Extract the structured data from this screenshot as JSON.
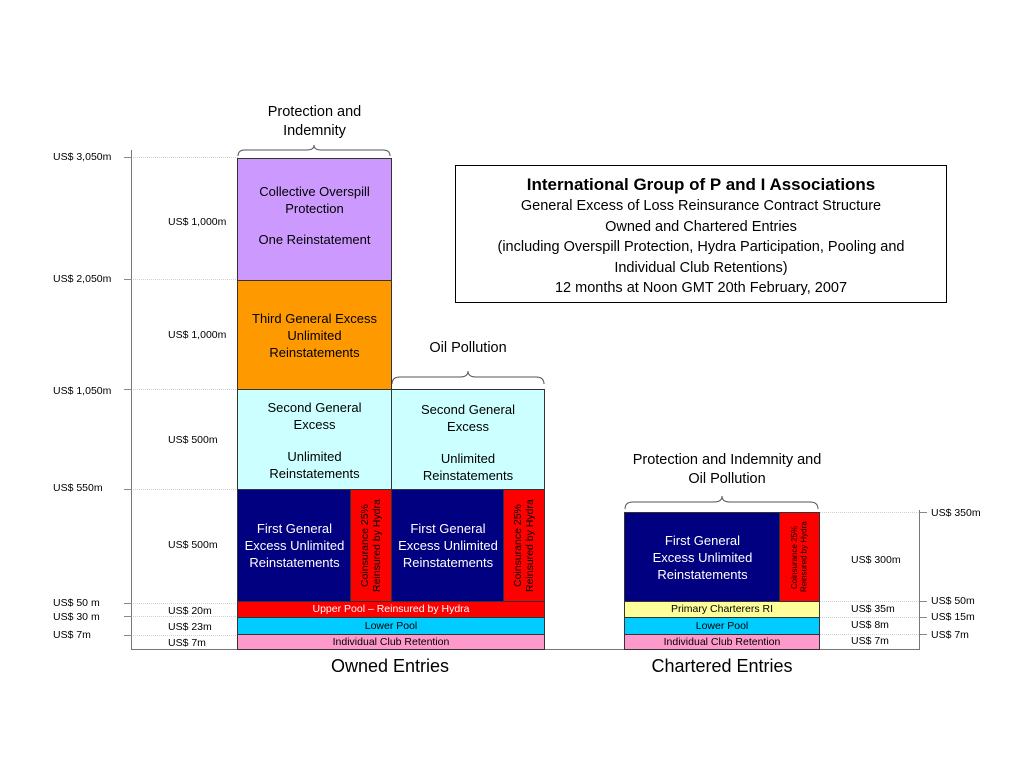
{
  "left_axis": [
    {
      "label": "US$ 3,050m"
    },
    {
      "label": "US$ 2,050m"
    },
    {
      "label": "US$ 1,050m"
    },
    {
      "label": "US$ 550m"
    },
    {
      "label": "US$ 50 m"
    },
    {
      "label": "US$ 30 m"
    },
    {
      "label": "US$ 7m"
    }
  ],
  "owned_amounts": [
    {
      "label": "US$ 1,000m"
    },
    {
      "label": "US$ 1,000m"
    },
    {
      "label": "US$ 500m"
    },
    {
      "label": "US$ 500m"
    },
    {
      "label": "US$   20m"
    },
    {
      "label": "US$   23m"
    },
    {
      "label": "US$     7m"
    }
  ],
  "headers": {
    "pi": "Protection and Indemnity",
    "oil": "Oil Pollution",
    "chartered": "Protection and Indemnity and Oil Pollution"
  },
  "title_box": {
    "title": "International Group of P and I Associations",
    "line1": "General Excess of Loss Reinsurance Contract Structure",
    "line2": "Owned and Chartered Entries",
    "line3": "(including Overspill Protection, Hydra Participation, Pooling and Individual Club Retentions)",
    "line4": "12 months at Noon GMT 20th February, 2007"
  },
  "owned": {
    "overspill": {
      "title": "Collective Overspill Protection",
      "sub": "One Reinstatement"
    },
    "third": {
      "title": "Third General Excess Unlimited Reinstatements"
    },
    "second_pi": {
      "title": "Second General Excess",
      "sub": "Unlimited Reinstatements"
    },
    "second_oil": {
      "title": "Second General Excess",
      "sub": "Unlimited Reinstatements"
    },
    "first_pi": {
      "title": "First General Excess Unlimited Reinstatements",
      "hydra": "Coinsurance 25% Reinsured by Hydra"
    },
    "first_oil": {
      "title": "First General Excess Unlimited Reinstatements",
      "hydra": "Coinsurance 25% Reinsured by Hydra"
    },
    "upper_pool": "Upper Pool – Reinsured by Hydra",
    "lower_pool": "Lower Pool",
    "retention": "Individual Club Retention",
    "footer": "Owned Entries"
  },
  "chartered": {
    "first": {
      "title": "First General Excess Unlimited Reinstatements",
      "hydra": "Coinsurance 25% Reinsured by Hydra"
    },
    "primary": "Primary Charterers RI",
    "lower_pool": "Lower Pool",
    "retention": "Individual Club Retention",
    "footer": "Chartered Entries",
    "amounts": [
      {
        "label": "US$ 300m"
      },
      {
        "label": "US$   35m"
      },
      {
        "label": "US$   8m"
      },
      {
        "label": "US$   7m"
      }
    ],
    "axis": [
      {
        "label": "US$ 350m"
      },
      {
        "label": "US$ 50m"
      },
      {
        "label": "US$ 15m"
      },
      {
        "label": "US$ 7m"
      }
    ]
  },
  "colors": {
    "overspill": "#cc99ff",
    "third": "#ff9900",
    "second": "#ccffff",
    "first": "#000080",
    "hydra": "#ff0000",
    "lower_pool": "#00ccff",
    "retention": "#ff99cc",
    "primary": "#ffff99"
  }
}
